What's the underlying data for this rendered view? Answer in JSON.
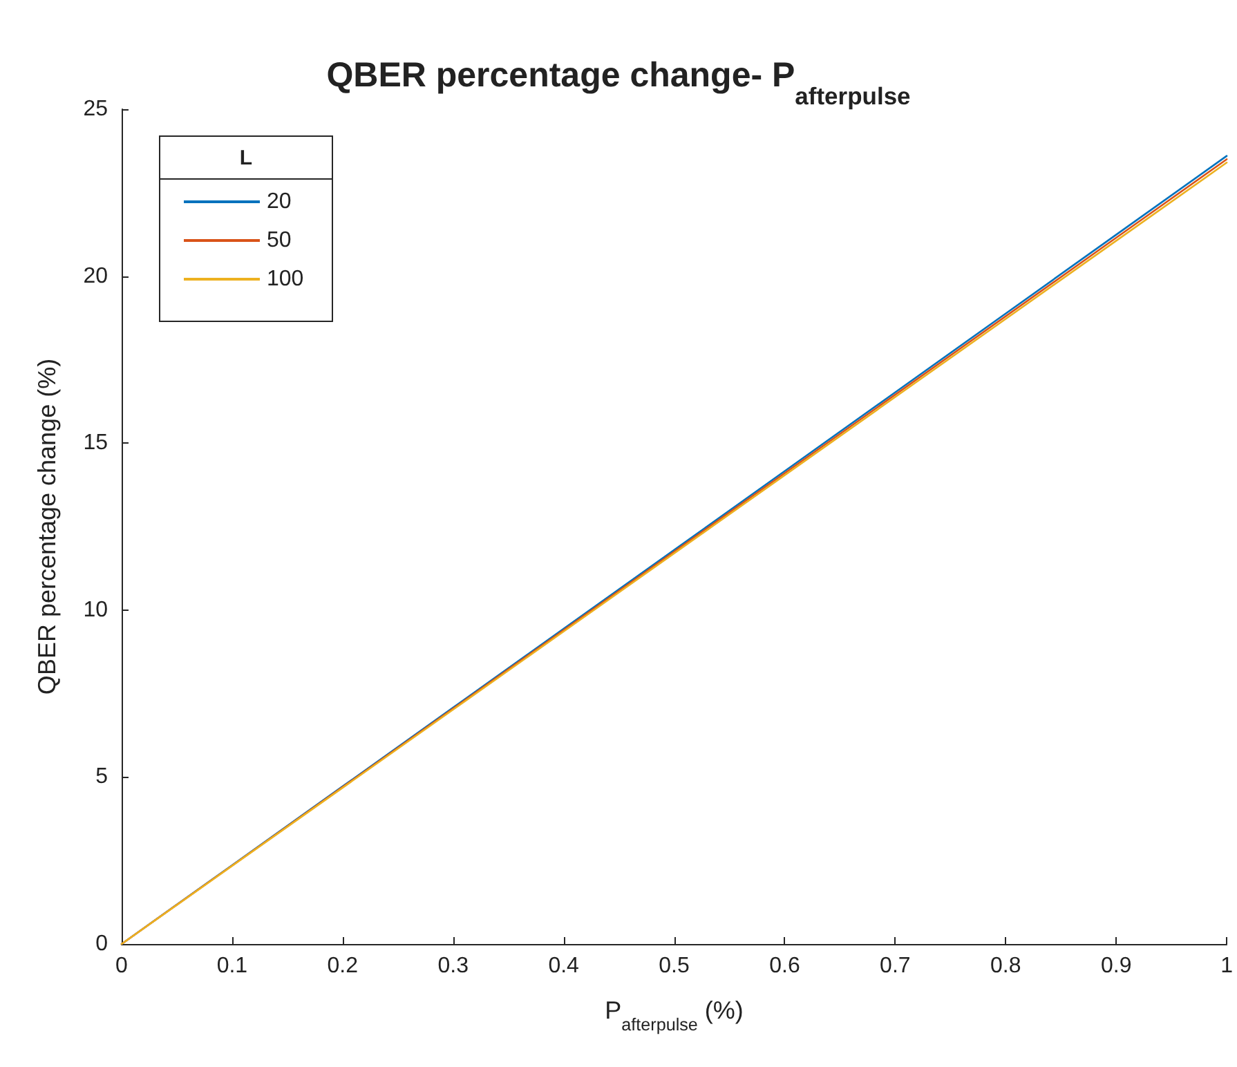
{
  "chart_data": {
    "type": "line",
    "title": "QBER percentage change- P$_{afterpulse}$",
    "xlabel": "P$_{afterpulse}$ (%)",
    "ylabel": "QBER percentage change (%)",
    "legend_title": "L",
    "x": [
      0,
      0.1,
      0.2,
      0.3,
      0.4,
      0.5,
      0.6,
      0.7,
      0.8,
      0.9,
      1
    ],
    "series": [
      {
        "name": "20",
        "color": "#0072bd",
        "values": [
          0,
          2.36,
          4.72,
          7.08,
          9.44,
          11.8,
          14.16,
          16.52,
          18.88,
          21.24,
          23.6
        ]
      },
      {
        "name": "50",
        "color": "#d95319",
        "values": [
          0,
          2.35,
          4.7,
          7.05,
          9.4,
          11.75,
          14.1,
          16.45,
          18.8,
          21.15,
          23.5
        ]
      },
      {
        "name": "100",
        "color": "#edb120",
        "values": [
          0,
          2.34,
          4.68,
          7.02,
          9.36,
          11.7,
          14.04,
          16.38,
          18.72,
          21.06,
          23.4
        ]
      }
    ],
    "xlim": [
      0,
      1
    ],
    "xticks": [
      0,
      0.1,
      0.2,
      0.3,
      0.4,
      0.5,
      0.6,
      0.7,
      0.8,
      0.9,
      1
    ],
    "ylim": [
      0,
      25
    ],
    "yticks": [
      0,
      5,
      10,
      15,
      20,
      25
    ],
    "grid": false,
    "legend": "top left",
    "marker": "none",
    "line_style": "solid"
  }
}
